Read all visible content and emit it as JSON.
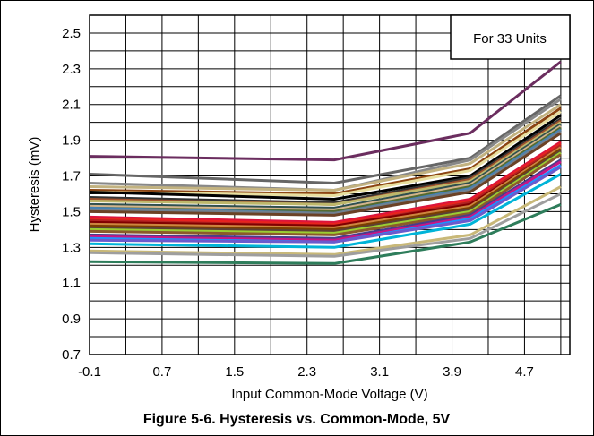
{
  "chart_data": {
    "type": "line",
    "title": "",
    "caption": "Figure 5-6. Hysteresis vs. Common-Mode, 5V",
    "xlabel": "Input Common-Mode Voltage (V)",
    "ylabel": "Hysteresis (mV)",
    "xlim": [
      -0.1,
      5.2
    ],
    "ylim": [
      0.7,
      2.6
    ],
    "xticks": [
      -0.1,
      0.7,
      1.5,
      2.3,
      3.1,
      3.9,
      4.7
    ],
    "xtick_labels": [
      "-0.1",
      "0.7",
      "1.5",
      "2.3",
      "3.1",
      "3.9",
      "4.7"
    ],
    "yticks": [
      0.7,
      0.9,
      1.1,
      1.3,
      1.5,
      1.7,
      1.9,
      2.1,
      2.3,
      2.5
    ],
    "ytick_labels": [
      "0.7",
      "0.9",
      "1.1",
      "1.3",
      "1.5",
      "1.7",
      "1.9",
      "2.1",
      "2.3",
      "2.5"
    ],
    "grid": true,
    "annotation": "For 33 Units",
    "x": [
      -0.1,
      2.6,
      4.1,
      5.1
    ],
    "series": [
      {
        "color": "#6B2D5F",
        "values": [
          1.81,
          1.79,
          1.94,
          2.34
        ]
      },
      {
        "color": "#666666",
        "values": [
          1.71,
          1.66,
          1.8,
          2.15
        ]
      },
      {
        "color": "#888888",
        "values": [
          1.66,
          1.62,
          1.79,
          2.13
        ]
      },
      {
        "color": "#C2B280",
        "values": [
          1.64,
          1.62,
          1.77,
          2.1
        ]
      },
      {
        "color": "#8B4513",
        "values": [
          1.62,
          1.6,
          1.74,
          2.08
        ]
      },
      {
        "color": "#E8DFA0",
        "values": [
          1.61,
          1.59,
          1.73,
          2.06
        ]
      },
      {
        "color": "#000000",
        "values": [
          1.61,
          1.57,
          1.7,
          2.04
        ]
      },
      {
        "color": "#333333",
        "values": [
          1.58,
          1.55,
          1.69,
          2.02
        ]
      },
      {
        "color": "#A0522D",
        "values": [
          1.57,
          1.54,
          1.68,
          2.01
        ]
      },
      {
        "color": "#BDB76B",
        "values": [
          1.56,
          1.54,
          1.67,
          2.0
        ]
      },
      {
        "color": "#2F4F4F",
        "values": [
          1.54,
          1.52,
          1.66,
          1.99
        ]
      },
      {
        "color": "#D2B48C",
        "values": [
          1.53,
          1.51,
          1.65,
          1.98
        ]
      },
      {
        "color": "#556B2F",
        "values": [
          1.52,
          1.5,
          1.64,
          1.97
        ]
      },
      {
        "color": "#4682B4",
        "values": [
          1.52,
          1.49,
          1.63,
          1.96
        ]
      },
      {
        "color": "#708090",
        "values": [
          1.51,
          1.49,
          1.62,
          1.95
        ]
      },
      {
        "color": "#6B4226",
        "values": [
          1.5,
          1.48,
          1.61,
          1.94
        ]
      },
      {
        "color": "#DC143C",
        "values": [
          1.47,
          1.44,
          1.57,
          1.89
        ]
      },
      {
        "color": "#E8231E",
        "values": [
          1.46,
          1.43,
          1.56,
          1.88
        ]
      },
      {
        "color": "#B22222",
        "values": [
          1.45,
          1.42,
          1.55,
          1.87
        ]
      },
      {
        "color": "#800000",
        "values": [
          1.44,
          1.42,
          1.54,
          1.86
        ]
      },
      {
        "color": "#CD853F",
        "values": [
          1.43,
          1.41,
          1.53,
          1.86
        ]
      },
      {
        "color": "#7B3F00",
        "values": [
          1.42,
          1.4,
          1.52,
          1.85
        ]
      },
      {
        "color": "#5C4033",
        "values": [
          1.41,
          1.39,
          1.51,
          1.84
        ]
      },
      {
        "color": "#9ACD32",
        "values": [
          1.4,
          1.38,
          1.5,
          1.83
        ]
      },
      {
        "color": "#8B5A2B",
        "values": [
          1.39,
          1.37,
          1.49,
          1.82
        ]
      },
      {
        "color": "#483D8B",
        "values": [
          1.37,
          1.35,
          1.48,
          1.79
        ]
      },
      {
        "color": "#C71585",
        "values": [
          1.36,
          1.34,
          1.47,
          1.78
        ]
      },
      {
        "color": "#1E90FF",
        "values": [
          1.35,
          1.33,
          1.46,
          1.76
        ]
      },
      {
        "color": "#6A5ACD",
        "values": [
          1.34,
          1.33,
          1.45,
          1.75
        ]
      },
      {
        "color": "#00B4D8",
        "values": [
          1.32,
          1.3,
          1.43,
          1.71
        ]
      },
      {
        "color": "#C8B878",
        "values": [
          1.28,
          1.26,
          1.37,
          1.64
        ]
      },
      {
        "color": "#9E9E9E",
        "values": [
          1.27,
          1.25,
          1.35,
          1.6
        ]
      },
      {
        "color": "#2E7D5B",
        "values": [
          1.22,
          1.21,
          1.33,
          1.54
        ]
      }
    ]
  }
}
